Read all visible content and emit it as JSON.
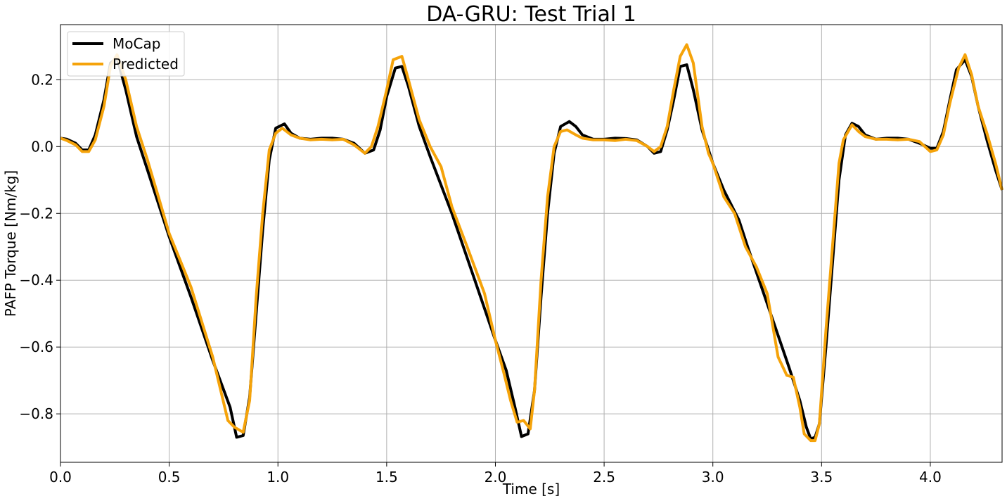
{
  "chart_data": {
    "type": "line",
    "title": "DA-GRU: Test Trial 1",
    "xlabel": "Time [s]",
    "ylabel": "PAFP Torque [Nm/kg]",
    "xlim": [
      0,
      4.33
    ],
    "ylim": [
      -0.945,
      0.365
    ],
    "xticks": [
      0.0,
      0.5,
      1.0,
      1.5,
      2.0,
      2.5,
      3.0,
      3.5,
      4.0
    ],
    "xtick_labels": [
      "0.0",
      "0.5",
      "1.0",
      "1.5",
      "2.0",
      "2.5",
      "3.0",
      "3.5",
      "4.0"
    ],
    "yticks": [
      0.2,
      0.0,
      -0.2,
      -0.4,
      -0.6,
      -0.8
    ],
    "ytick_labels": [
      "0.2",
      "0.0",
      "−0.2",
      "−0.4",
      "−0.6",
      "−0.8"
    ],
    "grid": true,
    "legend_position": "top-left",
    "series": [
      {
        "name": "MoCap",
        "color": "#000000",
        "points": [
          [
            0.0,
            0.025
          ],
          [
            0.03,
            0.022
          ],
          [
            0.07,
            0.01
          ],
          [
            0.1,
            -0.01
          ],
          [
            0.13,
            -0.01
          ],
          [
            0.16,
            0.035
          ],
          [
            0.2,
            0.14
          ],
          [
            0.23,
            0.25
          ],
          [
            0.26,
            0.265
          ],
          [
            0.3,
            0.17
          ],
          [
            0.35,
            0.03
          ],
          [
            0.4,
            -0.07
          ],
          [
            0.5,
            -0.27
          ],
          [
            0.6,
            -0.45
          ],
          [
            0.7,
            -0.64
          ],
          [
            0.78,
            -0.78
          ],
          [
            0.81,
            -0.87
          ],
          [
            0.84,
            -0.865
          ],
          [
            0.87,
            -0.75
          ],
          [
            0.9,
            -0.5
          ],
          [
            0.93,
            -0.25
          ],
          [
            0.96,
            -0.04
          ],
          [
            0.99,
            0.055
          ],
          [
            1.03,
            0.068
          ],
          [
            1.06,
            0.04
          ],
          [
            1.1,
            0.025
          ],
          [
            1.15,
            0.022
          ],
          [
            1.2,
            0.025
          ],
          [
            1.25,
            0.025
          ],
          [
            1.3,
            0.022
          ],
          [
            1.35,
            0.01
          ],
          [
            1.4,
            -0.02
          ],
          [
            1.44,
            -0.01
          ],
          [
            1.47,
            0.05
          ],
          [
            1.5,
            0.15
          ],
          [
            1.54,
            0.235
          ],
          [
            1.57,
            0.24
          ],
          [
            1.6,
            0.18
          ],
          [
            1.65,
            0.06
          ],
          [
            1.7,
            -0.03
          ],
          [
            1.8,
            -0.2
          ],
          [
            1.9,
            -0.39
          ],
          [
            2.0,
            -0.58
          ],
          [
            2.05,
            -0.67
          ],
          [
            2.09,
            -0.78
          ],
          [
            2.12,
            -0.868
          ],
          [
            2.15,
            -0.86
          ],
          [
            2.18,
            -0.73
          ],
          [
            2.21,
            -0.45
          ],
          [
            2.24,
            -0.2
          ],
          [
            2.27,
            -0.02
          ],
          [
            2.3,
            0.06
          ],
          [
            2.34,
            0.075
          ],
          [
            2.37,
            0.06
          ],
          [
            2.4,
            0.035
          ],
          [
            2.45,
            0.022
          ],
          [
            2.5,
            0.022
          ],
          [
            2.55,
            0.025
          ],
          [
            2.6,
            0.024
          ],
          [
            2.65,
            0.02
          ],
          [
            2.7,
            0.0
          ],
          [
            2.73,
            -0.02
          ],
          [
            2.76,
            -0.015
          ],
          [
            2.79,
            0.05
          ],
          [
            2.82,
            0.14
          ],
          [
            2.85,
            0.24
          ],
          [
            2.88,
            0.245
          ],
          [
            2.91,
            0.17
          ],
          [
            2.95,
            0.05
          ],
          [
            3.0,
            -0.05
          ],
          [
            3.05,
            -0.13
          ],
          [
            3.12,
            -0.22
          ],
          [
            3.16,
            -0.3
          ],
          [
            3.25,
            -0.47
          ],
          [
            3.35,
            -0.66
          ],
          [
            3.4,
            -0.76
          ],
          [
            3.43,
            -0.84
          ],
          [
            3.45,
            -0.875
          ],
          [
            3.47,
            -0.87
          ],
          [
            3.49,
            -0.83
          ],
          [
            3.52,
            -0.6
          ],
          [
            3.55,
            -0.35
          ],
          [
            3.58,
            -0.1
          ],
          [
            3.61,
            0.035
          ],
          [
            3.64,
            0.07
          ],
          [
            3.67,
            0.06
          ],
          [
            3.7,
            0.035
          ],
          [
            3.75,
            0.022
          ],
          [
            3.8,
            0.025
          ],
          [
            3.85,
            0.025
          ],
          [
            3.9,
            0.022
          ],
          [
            3.95,
            0.01
          ],
          [
            4.0,
            -0.005
          ],
          [
            4.03,
            -0.005
          ],
          [
            4.06,
            0.045
          ],
          [
            4.09,
            0.14
          ],
          [
            4.12,
            0.23
          ],
          [
            4.16,
            0.26
          ],
          [
            4.19,
            0.21
          ],
          [
            4.22,
            0.12
          ],
          [
            4.26,
            0.02
          ],
          [
            4.3,
            -0.07
          ],
          [
            4.33,
            -0.13
          ]
        ]
      },
      {
        "name": "Predicted",
        "color": "#f5a30a",
        "points": [
          [
            0.0,
            0.025
          ],
          [
            0.03,
            0.018
          ],
          [
            0.07,
            0.005
          ],
          [
            0.1,
            -0.015
          ],
          [
            0.13,
            -0.015
          ],
          [
            0.16,
            0.02
          ],
          [
            0.2,
            0.12
          ],
          [
            0.23,
            0.24
          ],
          [
            0.26,
            0.275
          ],
          [
            0.3,
            0.2
          ],
          [
            0.35,
            0.06
          ],
          [
            0.4,
            -0.04
          ],
          [
            0.45,
            -0.15
          ],
          [
            0.5,
            -0.26
          ],
          [
            0.55,
            -0.34
          ],
          [
            0.6,
            -0.42
          ],
          [
            0.7,
            -0.63
          ],
          [
            0.77,
            -0.82
          ],
          [
            0.8,
            -0.84
          ],
          [
            0.84,
            -0.855
          ],
          [
            0.87,
            -0.76
          ],
          [
            0.9,
            -0.45
          ],
          [
            0.93,
            -0.2
          ],
          [
            0.96,
            -0.01
          ],
          [
            0.99,
            0.04
          ],
          [
            1.02,
            0.055
          ],
          [
            1.06,
            0.035
          ],
          [
            1.1,
            0.025
          ],
          [
            1.15,
            0.02
          ],
          [
            1.2,
            0.022
          ],
          [
            1.25,
            0.02
          ],
          [
            1.3,
            0.022
          ],
          [
            1.35,
            0.005
          ],
          [
            1.4,
            -0.02
          ],
          [
            1.43,
            0.0
          ],
          [
            1.46,
            0.06
          ],
          [
            1.5,
            0.17
          ],
          [
            1.53,
            0.26
          ],
          [
            1.57,
            0.27
          ],
          [
            1.6,
            0.2
          ],
          [
            1.65,
            0.08
          ],
          [
            1.7,
            0.0
          ],
          [
            1.75,
            -0.06
          ],
          [
            1.8,
            -0.18
          ],
          [
            1.87,
            -0.3
          ],
          [
            1.95,
            -0.44
          ],
          [
            2.0,
            -0.58
          ],
          [
            2.04,
            -0.68
          ],
          [
            2.07,
            -0.76
          ],
          [
            2.1,
            -0.825
          ],
          [
            2.13,
            -0.82
          ],
          [
            2.16,
            -0.845
          ],
          [
            2.18,
            -0.73
          ],
          [
            2.21,
            -0.4
          ],
          [
            2.24,
            -0.15
          ],
          [
            2.27,
            0.0
          ],
          [
            2.3,
            0.045
          ],
          [
            2.33,
            0.05
          ],
          [
            2.37,
            0.035
          ],
          [
            2.4,
            0.025
          ],
          [
            2.45,
            0.02
          ],
          [
            2.5,
            0.02
          ],
          [
            2.55,
            0.018
          ],
          [
            2.6,
            0.022
          ],
          [
            2.65,
            0.018
          ],
          [
            2.7,
            0.0
          ],
          [
            2.73,
            -0.015
          ],
          [
            2.76,
            0.0
          ],
          [
            2.79,
            0.06
          ],
          [
            2.82,
            0.17
          ],
          [
            2.85,
            0.27
          ],
          [
            2.88,
            0.305
          ],
          [
            2.91,
            0.25
          ],
          [
            2.95,
            0.06
          ],
          [
            2.98,
            -0.02
          ],
          [
            3.0,
            -0.05
          ],
          [
            3.05,
            -0.15
          ],
          [
            3.1,
            -0.2
          ],
          [
            3.15,
            -0.3
          ],
          [
            3.2,
            -0.36
          ],
          [
            3.25,
            -0.44
          ],
          [
            3.3,
            -0.63
          ],
          [
            3.34,
            -0.685
          ],
          [
            3.37,
            -0.69
          ],
          [
            3.4,
            -0.78
          ],
          [
            3.42,
            -0.86
          ],
          [
            3.45,
            -0.88
          ],
          [
            3.47,
            -0.88
          ],
          [
            3.49,
            -0.83
          ],
          [
            3.52,
            -0.55
          ],
          [
            3.55,
            -0.3
          ],
          [
            3.58,
            -0.05
          ],
          [
            3.6,
            0.02
          ],
          [
            3.64,
            0.065
          ],
          [
            3.67,
            0.045
          ],
          [
            3.7,
            0.03
          ],
          [
            3.75,
            0.022
          ],
          [
            3.8,
            0.022
          ],
          [
            3.85,
            0.02
          ],
          [
            3.9,
            0.022
          ],
          [
            3.95,
            0.015
          ],
          [
            4.0,
            -0.015
          ],
          [
            4.03,
            -0.01
          ],
          [
            4.06,
            0.035
          ],
          [
            4.09,
            0.13
          ],
          [
            4.13,
            0.235
          ],
          [
            4.16,
            0.275
          ],
          [
            4.19,
            0.215
          ],
          [
            4.22,
            0.12
          ],
          [
            4.26,
            0.04
          ],
          [
            4.3,
            -0.05
          ],
          [
            4.33,
            -0.13
          ]
        ]
      }
    ]
  }
}
